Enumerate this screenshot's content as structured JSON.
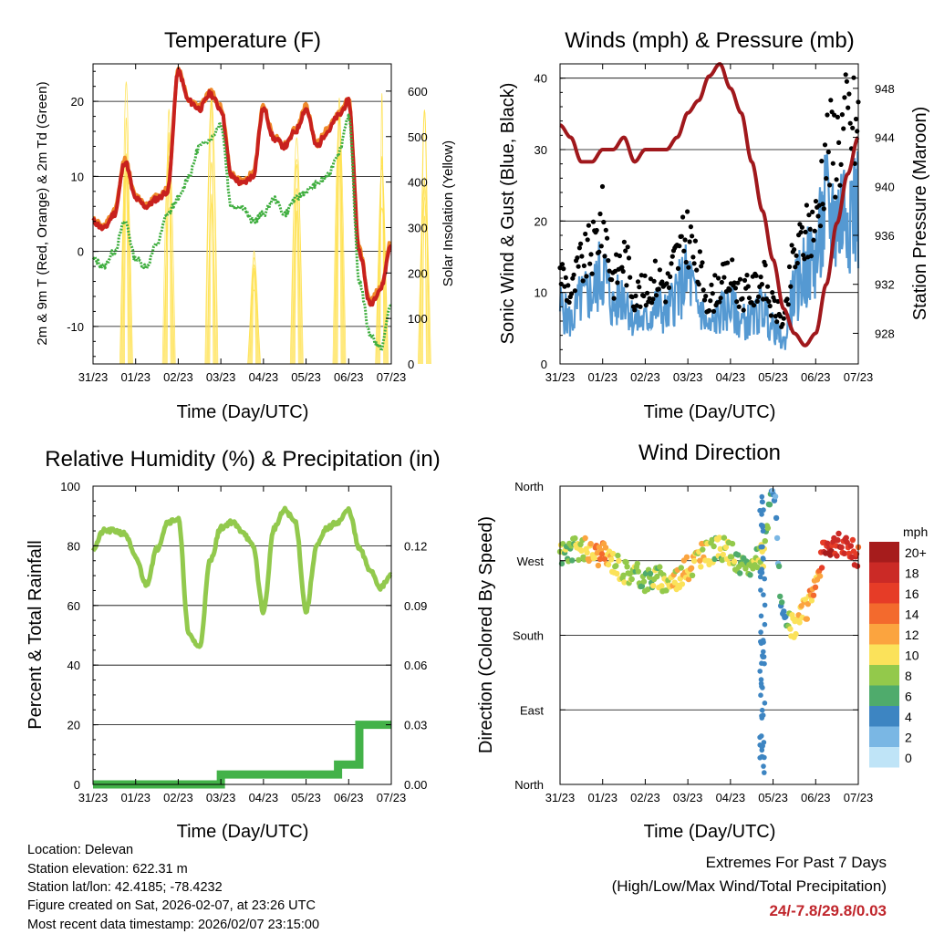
{
  "xticks": [
    "31/23",
    "01/23",
    "02/23",
    "03/23",
    "04/23",
    "05/23",
    "06/23",
    "07/23"
  ],
  "colors": {
    "temp2m": "#c8211e",
    "temp9m": "#f08a2a",
    "dew": "#3fae3f",
    "solar": "#ffe14f",
    "wind": "#5599d2",
    "gust": "#000000",
    "pressure": "#a0181c",
    "rh": "#92c94d",
    "precip": "#43b249",
    "extreme": "#c0262c"
  },
  "chart_data": [
    {
      "type": "line",
      "title": "Temperature (F)",
      "xlabel": "Time (Day/UTC)",
      "ylabel": "2m & 9m T (Red, Orange) & 2m Td (Green)",
      "ylabel_right": "Solar Insolation (Yellow)",
      "ylim": [
        -15,
        25
      ],
      "ylim_right": [
        0,
        660
      ],
      "yticks": [
        -10,
        0,
        10,
        20
      ],
      "yticks_right": [
        0,
        100,
        200,
        300,
        400,
        500,
        600
      ],
      "x": [
        0,
        0.25,
        0.5,
        0.75,
        1,
        1.25,
        1.5,
        1.75,
        2,
        2.25,
        2.5,
        2.75,
        3,
        3.25,
        3.5,
        3.75,
        4,
        4.25,
        4.5,
        4.75,
        5,
        5.25,
        5.5,
        5.75,
        6,
        6.25,
        6.5,
        6.75,
        7
      ],
      "series": [
        {
          "name": "2m T",
          "values": [
            4,
            3,
            5,
            12,
            7,
            6,
            7,
            8,
            24,
            20,
            19,
            21,
            19,
            10,
            9,
            10,
            19,
            15,
            14,
            16,
            19,
            14,
            16,
            18,
            20,
            0,
            -7,
            -5,
            1
          ]
        },
        {
          "name": "9m T",
          "values": [
            4.3,
            3.3,
            5.3,
            12.3,
            7.3,
            6.3,
            7.3,
            8.3,
            24.3,
            20.3,
            19.3,
            21.3,
            19.3,
            10.3,
            9.3,
            10.3,
            19.3,
            15.3,
            14.3,
            16.3,
            19.3,
            14.3,
            16.3,
            18.3,
            20.3,
            0.3,
            -6.7,
            -4.7,
            1.3
          ]
        },
        {
          "name": "2m Td",
          "values": [
            -1,
            -2,
            0,
            4,
            -1,
            -2,
            1,
            5,
            7,
            10,
            14,
            15,
            17,
            6,
            6,
            4,
            5,
            7,
            5,
            7,
            8,
            9,
            10,
            13,
            18,
            -4,
            -11,
            -13,
            -7
          ]
        }
      ],
      "solar_days": [
        {
          "day": "31/23",
          "peak": 640
        },
        {
          "day": "01/23",
          "peak": 590
        },
        {
          "day": "02/23",
          "peak": 610
        },
        {
          "day": "03/23",
          "peak": 260
        },
        {
          "day": "04/23",
          "peak": 600
        },
        {
          "day": "05/23",
          "peak": 610
        },
        {
          "day": "06/23",
          "peak": 620
        },
        {
          "day": "07/23",
          "peak": 580
        }
      ]
    },
    {
      "type": "line",
      "title": "Winds (mph) & Pressure (mb)",
      "xlabel": "Time (Day/UTC)",
      "ylabel": "Sonic Wind & Gust (Blue, Black)",
      "ylabel_right": "Station Pressure (Maroon)",
      "ylim": [
        0,
        42
      ],
      "ylim_right": [
        925.5,
        950
      ],
      "yticks": [
        0,
        10,
        20,
        30,
        40
      ],
      "yticks_right": [
        928,
        932,
        936,
        940,
        944,
        948
      ],
      "x": [
        0,
        0.25,
        0.5,
        0.75,
        1,
        1.25,
        1.5,
        1.75,
        2,
        2.25,
        2.5,
        2.75,
        3,
        3.25,
        3.5,
        3.75,
        4,
        4.25,
        4.5,
        4.75,
        5,
        5.25,
        5.5,
        5.75,
        6,
        6.25,
        6.5,
        6.75,
        7
      ],
      "series": [
        {
          "name": "Wind",
          "values": [
            8,
            6,
            9,
            10,
            13,
            8,
            10,
            6,
            6,
            8,
            7,
            10,
            12,
            8,
            5,
            7,
            8,
            6,
            6,
            8,
            5,
            3,
            10,
            13,
            15,
            21,
            20,
            23,
            22
          ]
        },
        {
          "name": "Gust",
          "values": [
            13,
            10,
            14,
            16,
            20,
            12,
            15,
            10,
            10,
            12,
            11,
            15,
            18,
            13,
            9,
            11,
            12,
            10,
            10,
            12,
            8,
            6,
            15,
            18,
            20,
            30,
            31,
            34,
            33
          ]
        },
        {
          "name": "Pressure",
          "values": [
            945,
            944,
            942,
            942,
            943,
            943,
            944,
            942,
            943,
            943,
            943,
            944,
            946,
            947,
            949,
            950,
            948,
            946,
            942,
            938,
            934,
            930,
            928,
            927,
            928,
            932,
            937,
            941,
            944
          ]
        }
      ]
    },
    {
      "type": "line",
      "title": "Relative Humidity (%) & Precipitation (in)",
      "xlabel": "Time (Day/UTC)",
      "ylabel": "Percent & Total Rainfall",
      "ylim": [
        0,
        100
      ],
      "ylim_right": [
        0,
        0.15
      ],
      "yticks": [
        0,
        20,
        40,
        60,
        80,
        100
      ],
      "yticks_right": [
        "0.00",
        "0.03",
        "0.06",
        "0.09",
        "0.12"
      ],
      "x": [
        0,
        0.25,
        0.5,
        0.75,
        1,
        1.25,
        1.5,
        1.75,
        2,
        2.25,
        2.5,
        2.75,
        3,
        3.25,
        3.5,
        3.75,
        4,
        4.25,
        4.5,
        4.75,
        5,
        5.25,
        5.5,
        5.75,
        6,
        6.25,
        6.5,
        6.75,
        7
      ],
      "series": [
        {
          "name": "RH",
          "values": [
            79,
            85,
            85,
            84,
            76,
            67,
            79,
            88,
            89,
            50,
            46,
            75,
            86,
            88,
            85,
            80,
            58,
            86,
            92,
            88,
            58,
            80,
            86,
            88,
            92,
            79,
            72,
            66,
            70
          ]
        },
        {
          "name": "Precipitation",
          "values": [
            0,
            0,
            0,
            0,
            0,
            0,
            0,
            0,
            0,
            0,
            0,
            0,
            0.005,
            0.005,
            0.005,
            0.005,
            0.005,
            0.005,
            0.005,
            0.005,
            0.005,
            0.005,
            0.005,
            0.01,
            0.01,
            0.03,
            0.03,
            0.03,
            0.03
          ]
        }
      ]
    },
    {
      "type": "scatter",
      "title": "Wind Direction",
      "xlabel": "Time (Day/UTC)",
      "ylabel": "Direction (Colored By Speed)",
      "yticks": [
        "North",
        "East",
        "South",
        "West",
        "North"
      ],
      "ylim": [
        0,
        360
      ],
      "x": [
        0,
        0.25,
        0.5,
        0.75,
        1,
        1.25,
        1.5,
        1.75,
        2,
        2.25,
        2.5,
        2.75,
        3,
        3.25,
        3.5,
        3.75,
        4,
        4.25,
        4.5,
        4.75,
        5,
        5.25,
        5.5,
        5.75,
        6,
        6.25,
        6.5,
        6.75,
        7
      ],
      "direction": [
        280,
        282,
        285,
        280,
        278,
        270,
        258,
        255,
        248,
        250,
        245,
        250,
        260,
        275,
        280,
        285,
        280,
        260,
        265,
        275,
        355,
        195,
        190,
        210,
        245,
        290,
        290,
        285,
        275
      ],
      "speed": [
        8,
        7,
        9,
        12,
        12,
        10,
        9,
        8,
        7,
        8,
        9,
        10,
        11,
        10,
        9,
        8,
        9,
        7,
        8,
        9,
        3,
        5,
        10,
        11,
        12,
        18,
        18,
        17,
        16
      ],
      "legend_title": "mph",
      "legend": [
        "20+",
        "18",
        "16",
        "14",
        "12",
        "10",
        "8",
        "6",
        "4",
        "2",
        "0"
      ],
      "legend_colors": [
        "#a61c1c",
        "#cb2a26",
        "#e63c27",
        "#f36a2d",
        "#fba43f",
        "#fbe25a",
        "#93c94b",
        "#4fab6c",
        "#3d85c2",
        "#7ab7e4",
        "#bfe4f7"
      ]
    }
  ],
  "info": {
    "location": "Location: Delevan",
    "elevation": "Station elevation: 622.31 m",
    "latlon": "Station lat/lon: 42.4185; -78.4232",
    "created": "Figure created on Sat, 2026-02-07, at 23:26 UTC",
    "recent": "Most recent data timestamp: 2026/02/07 23:15:00"
  },
  "extremes": {
    "line1": "Extremes For Past 7 Days",
    "line2": "(High/Low/Max Wind/Total Precipitation)",
    "values": "24/-7.8/29.8/0.03"
  }
}
